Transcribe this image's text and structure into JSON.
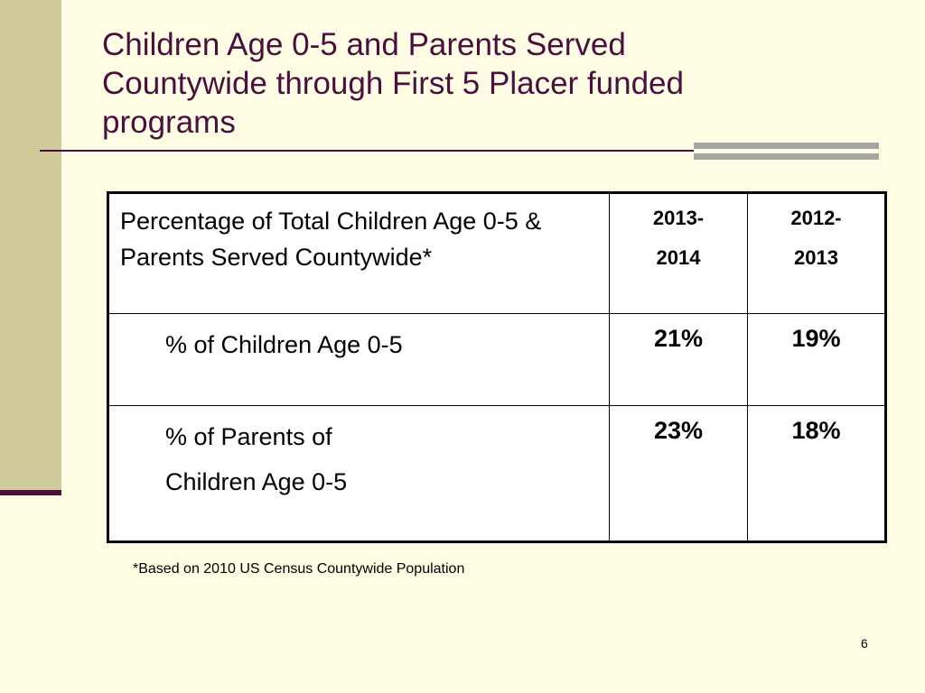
{
  "slide": {
    "title_lines": [
      "Children Age 0-5 and Parents Served",
      "Countywide through First 5 Placer funded",
      "programs"
    ],
    "footnote": "*Based on 2010 US Census Countywide Population",
    "page_number": "6"
  },
  "table": {
    "header": {
      "label": "Percentage of Total Children Age 0-5 & Parents Served Countywide*",
      "years": [
        {
          "line1": "2013-",
          "line2": "2014"
        },
        {
          "line1": "2012-",
          "line2": "2013"
        }
      ]
    },
    "rows": [
      {
        "label_lines": [
          "% of Children Age 0-5"
        ],
        "values": [
          "21%",
          "19%"
        ]
      },
      {
        "label_lines": [
          "% of Parents of",
          "Children Age 0-5"
        ],
        "values": [
          "23%",
          "18%"
        ]
      }
    ]
  },
  "colors": {
    "background": "#FFFDE3",
    "side_bar": "#CFCB9B",
    "accent": "#4A0F3F",
    "gray_bands": "#A6A6A6"
  }
}
